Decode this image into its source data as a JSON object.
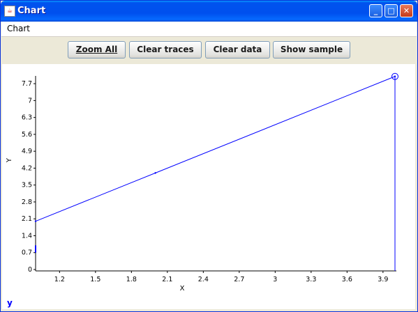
{
  "window": {
    "title": "Chart",
    "icon": "java-icon"
  },
  "menu": {
    "items": [
      "Chart"
    ]
  },
  "toolbar": {
    "buttons": [
      "Zoom All",
      "Clear traces",
      "Clear data",
      "Show sample"
    ]
  },
  "legend": {
    "series_name": "y"
  },
  "colors": {
    "trace": "#0000ff",
    "titlebar": "#0053ee",
    "legend": "#0000ff"
  },
  "chart_data": {
    "type": "line",
    "title": "",
    "xlabel": "X",
    "ylabel": "Y",
    "xlim": [
      1.0,
      4.0
    ],
    "ylim": [
      0,
      8.05
    ],
    "xticks": [
      "1.2",
      "1.5",
      "1.8",
      "2.1",
      "2.4",
      "2.7",
      "3",
      "3.3",
      "3.6",
      "3.9"
    ],
    "yticks": [
      "0",
      "0.7",
      "1.4",
      "2.1",
      "2.8",
      "3.5",
      "4.2",
      "4.9",
      "5.6",
      "6.3",
      "7",
      "7.7"
    ],
    "grid": false,
    "series": [
      {
        "name": "y",
        "x": [
          1.0,
          2.0,
          4.0
        ],
        "y": [
          2.0,
          4.0,
          8.0
        ]
      }
    ]
  }
}
